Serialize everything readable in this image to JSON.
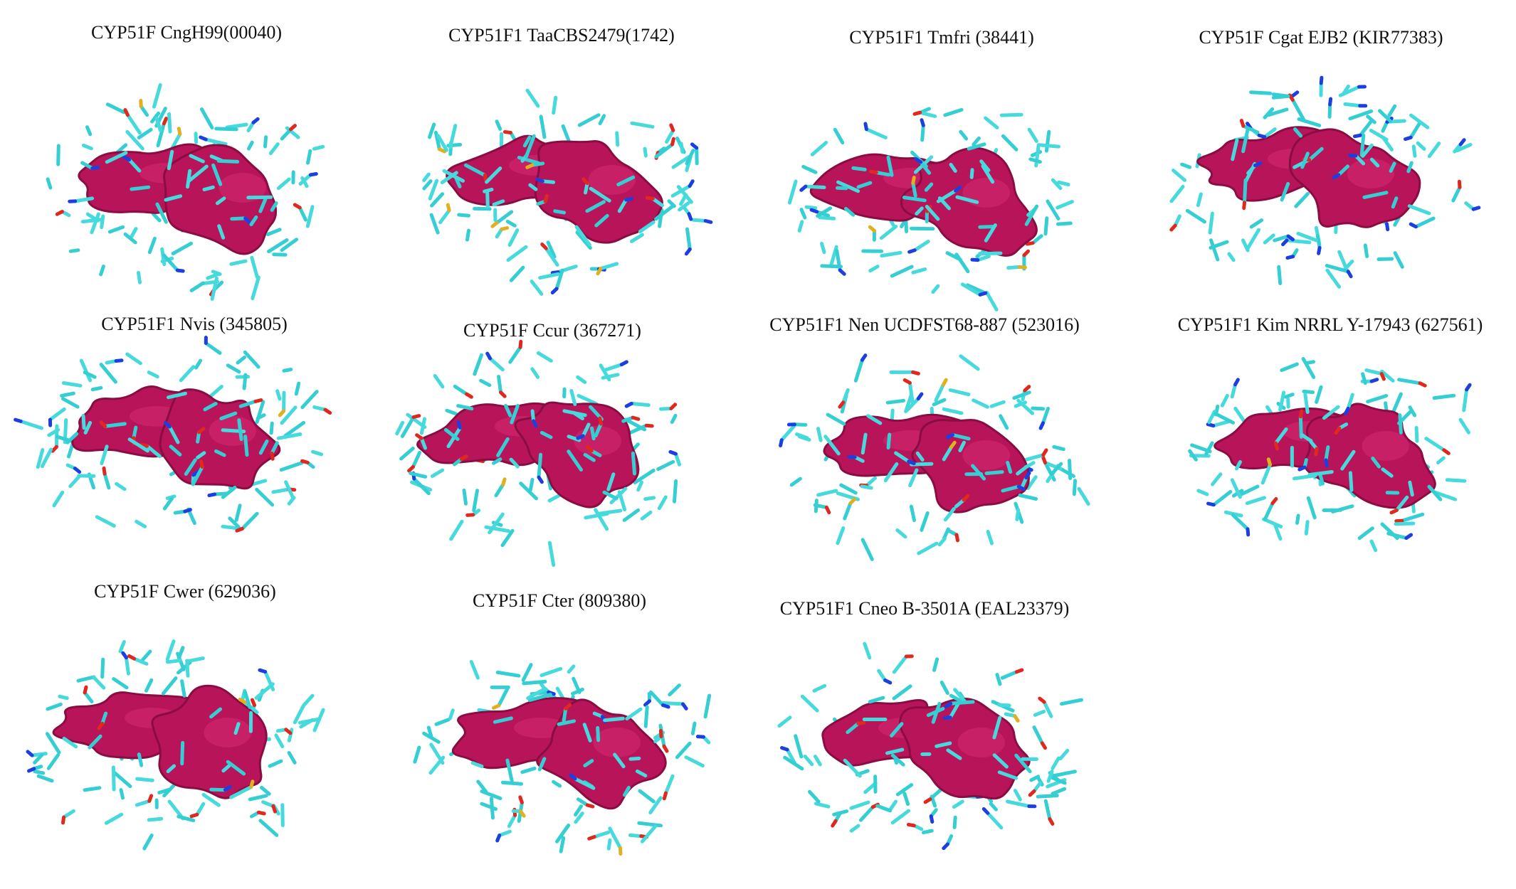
{
  "panels": [
    {
      "title": "CYP51F CngH99(00040)"
    },
    {
      "title": "CYP51F1 TaaCBS2479(1742)"
    },
    {
      "title": "CYP51F1 Tmfri (38441)"
    },
    {
      "title": "CYP51F Cgat EJB2 (KIR77383)"
    },
    {
      "title": "CYP51F1 Nvis (345805)"
    },
    {
      "title": "CYP51F Ccur (367271)"
    },
    {
      "title": "CYP51F1 Nen UCDFST68-887 (523016)"
    },
    {
      "title": "CYP51F1 Kim NRRL Y-17943 (627561)"
    },
    {
      "title": "CYP51F Cwer (629036)"
    },
    {
      "title": "CYP51F Cter (809380)"
    },
    {
      "title": "CYP51F1 Cneo B-3501A (EAL23379)"
    }
  ]
}
